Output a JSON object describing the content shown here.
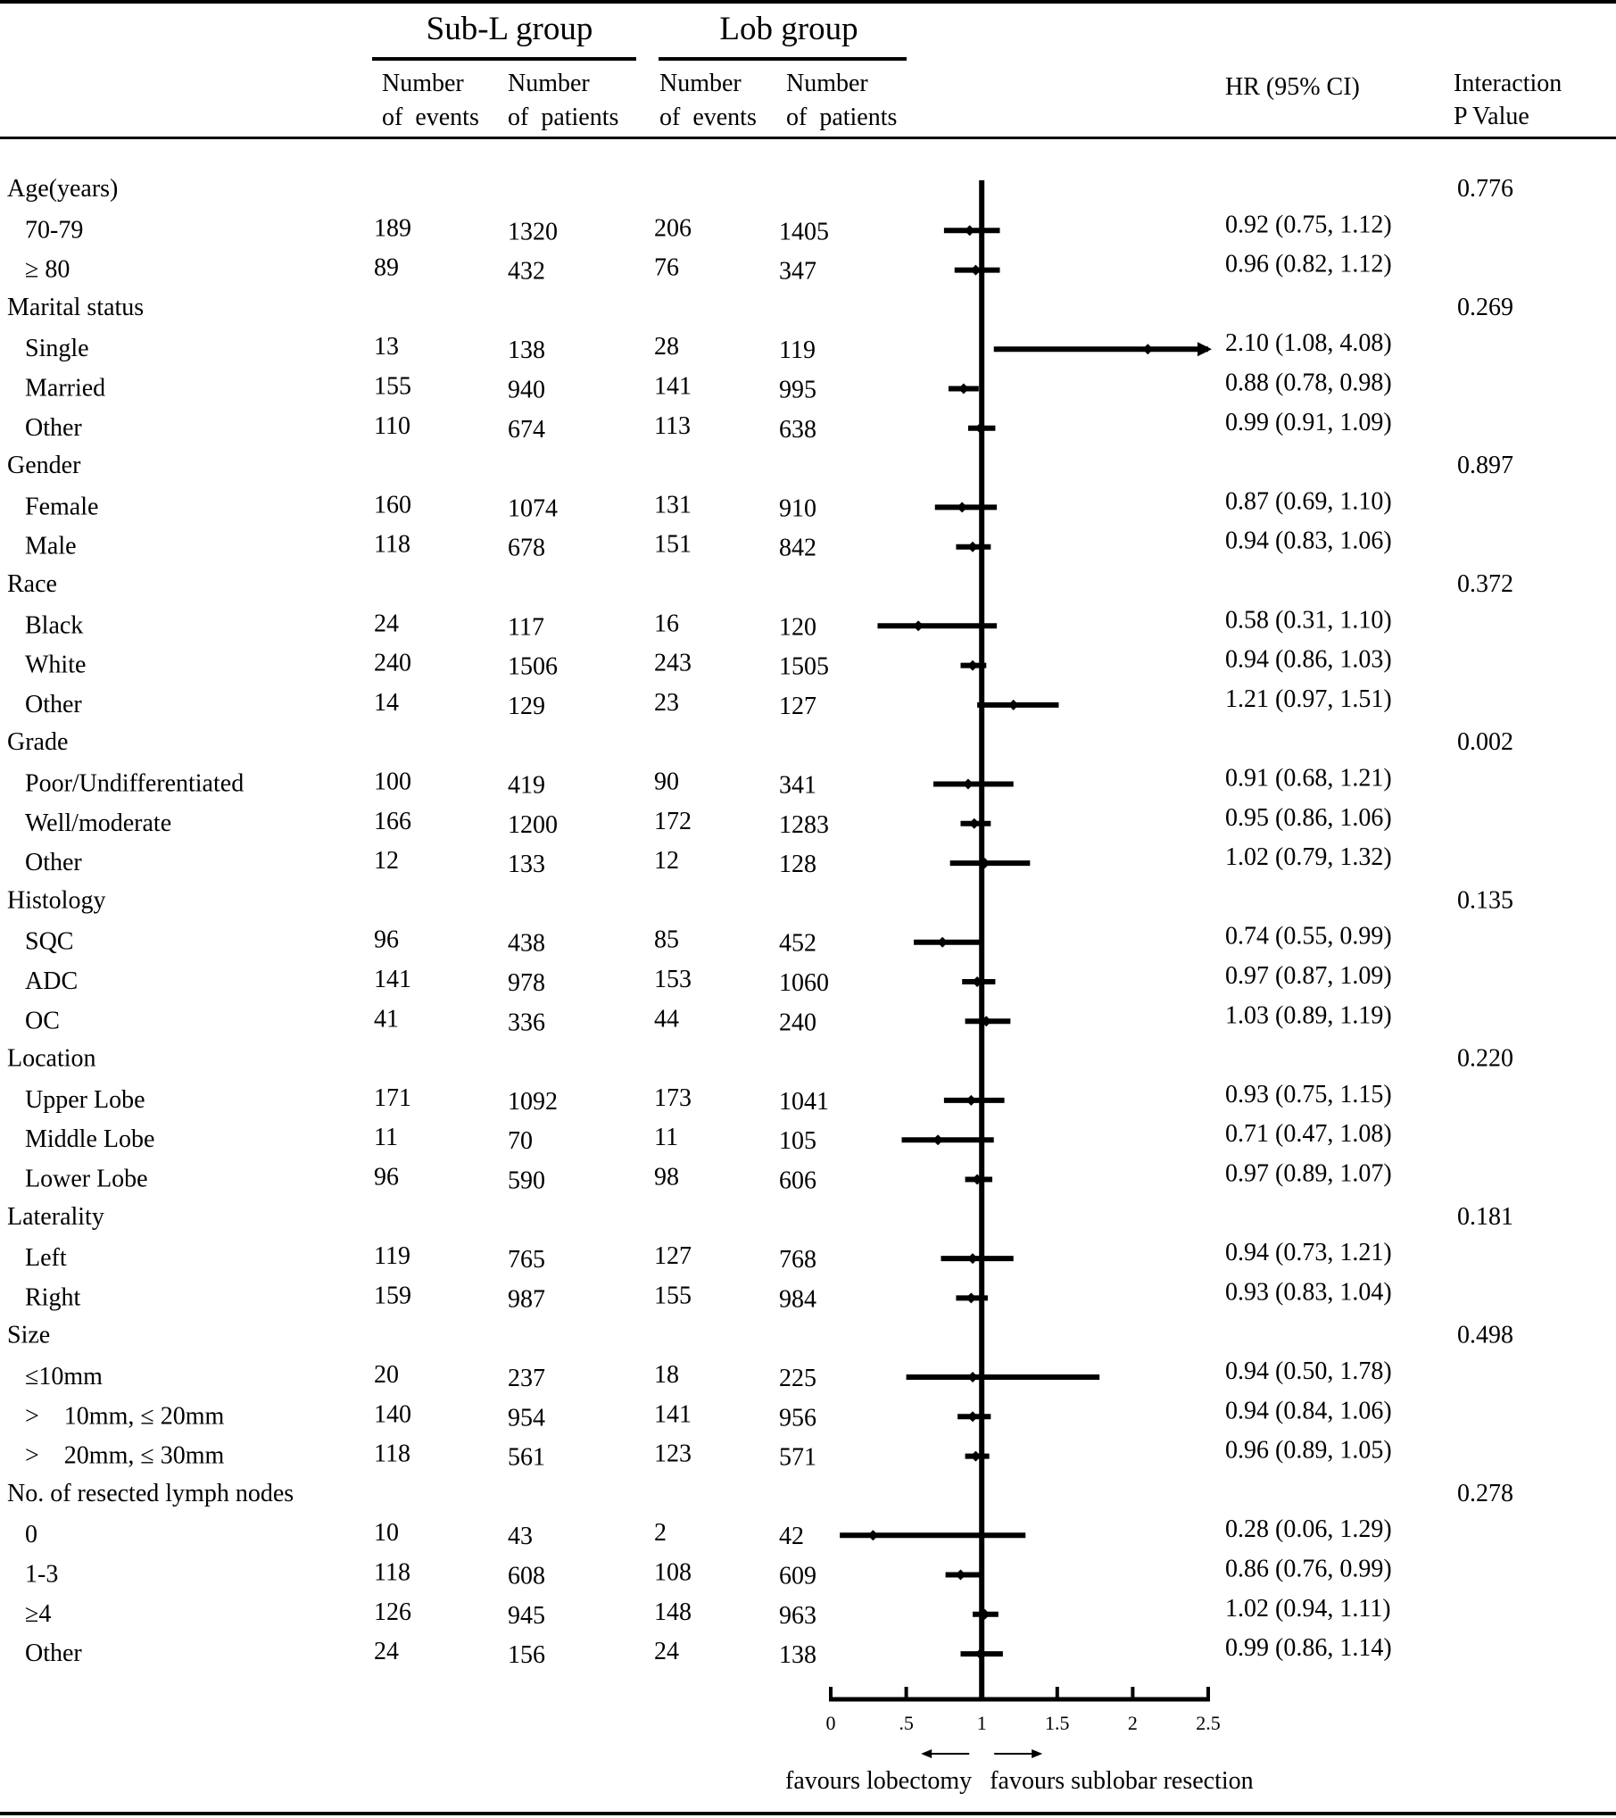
{
  "chart_data": {
    "type": "forest",
    "title": "",
    "headers": {
      "group1": "Sub-L group",
      "group2": "Lob group",
      "events_line1": "Number",
      "events_line2": "of  events",
      "patients_line1": "Number",
      "patients_line2": "of  patients",
      "hr": "HR (95% CI)",
      "pval_line1": "Interaction",
      "pval_line2": "P Value"
    },
    "axis": {
      "ticks": [
        0,
        0.5,
        1,
        1.5,
        2,
        2.5
      ],
      "tick_labels": [
        "0",
        ".5",
        "1",
        "1.5",
        "2",
        "2.5"
      ],
      "xlim": [
        0,
        2.5
      ],
      "reference": 1,
      "arrow_left_label": "favours lobectomy",
      "arrow_right_label": "favours sublobar resection"
    },
    "rows": [
      {
        "kind": "group",
        "label": "Age(years)",
        "pval": "0.776"
      },
      {
        "kind": "sub",
        "label": "70-79",
        "sub_events": "189",
        "sub_patients": "1320",
        "lob_events": "206",
        "lob_patients": "1405",
        "hr_text": "0.92 (0.75, 1.12)",
        "hr": 0.92,
        "lo": 0.75,
        "hi": 1.12
      },
      {
        "kind": "sub",
        "label": "≥ 80",
        "sub_events": "89",
        "sub_patients": "432",
        "lob_events": "76",
        "lob_patients": "347",
        "hr_text": "0.96 (0.82, 1.12)",
        "hr": 0.96,
        "lo": 0.82,
        "hi": 1.12
      },
      {
        "kind": "group",
        "label": "Marital status",
        "pval": "0.269"
      },
      {
        "kind": "sub",
        "label": "Single",
        "sub_events": "13",
        "sub_patients": "138",
        "lob_events": "28",
        "lob_patients": "119",
        "hr_text": "2.10 (1.08, 4.08)",
        "hr": 2.1,
        "lo": 1.08,
        "hi": 4.08
      },
      {
        "kind": "sub",
        "label": "Married",
        "sub_events": "155",
        "sub_patients": "940",
        "lob_events": "141",
        "lob_patients": "995",
        "hr_text": "0.88 (0.78, 0.98)",
        "hr": 0.88,
        "lo": 0.78,
        "hi": 0.98
      },
      {
        "kind": "sub",
        "label": "Other",
        "sub_events": "110",
        "sub_patients": "674",
        "lob_events": "113",
        "lob_patients": "638",
        "hr_text": "0.99 (0.91, 1.09)",
        "hr": 0.99,
        "lo": 0.91,
        "hi": 1.09
      },
      {
        "kind": "group",
        "label": "Gender",
        "pval": "0.897"
      },
      {
        "kind": "sub",
        "label": "Female",
        "sub_events": "160",
        "sub_patients": "1074",
        "lob_events": "131",
        "lob_patients": "910",
        "hr_text": "0.87 (0.69, 1.10)",
        "hr": 0.87,
        "lo": 0.69,
        "hi": 1.1
      },
      {
        "kind": "sub",
        "label": "Male",
        "sub_events": "118",
        "sub_patients": "678",
        "lob_events": "151",
        "lob_patients": "842",
        "hr_text": "0.94 (0.83, 1.06)",
        "hr": 0.94,
        "lo": 0.83,
        "hi": 1.06
      },
      {
        "kind": "group",
        "label": "Race",
        "pval": "0.372"
      },
      {
        "kind": "sub",
        "label": "Black",
        "sub_events": "24",
        "sub_patients": "117",
        "lob_events": "16",
        "lob_patients": "120",
        "hr_text": "0.58 (0.31, 1.10)",
        "hr": 0.58,
        "lo": 0.31,
        "hi": 1.1
      },
      {
        "kind": "sub",
        "label": "White",
        "sub_events": "240",
        "sub_patients": "1506",
        "lob_events": "243",
        "lob_patients": "1505",
        "hr_text": "0.94 (0.86, 1.03)",
        "hr": 0.94,
        "lo": 0.86,
        "hi": 1.03
      },
      {
        "kind": "sub",
        "label": "Other",
        "sub_events": "14",
        "sub_patients": "129",
        "lob_events": "23",
        "lob_patients": "127",
        "hr_text": "1.21 (0.97, 1.51)",
        "hr": 1.21,
        "lo": 0.97,
        "hi": 1.51
      },
      {
        "kind": "group",
        "label": "Grade",
        "pval": "0.002"
      },
      {
        "kind": "sub",
        "label": "Poor/Undifferentiated",
        "sub_events": "100",
        "sub_patients": "419",
        "lob_events": "90",
        "lob_patients": "341",
        "hr_text": "0.91 (0.68, 1.21)",
        "hr": 0.91,
        "lo": 0.68,
        "hi": 1.21
      },
      {
        "kind": "sub",
        "label": "Well/moderate",
        "sub_events": "166",
        "sub_patients": "1200",
        "lob_events": "172",
        "lob_patients": "1283",
        "hr_text": "0.95 (0.86, 1.06)",
        "hr": 0.95,
        "lo": 0.86,
        "hi": 1.06
      },
      {
        "kind": "sub",
        "label": "Other",
        "sub_events": "12",
        "sub_patients": "133",
        "lob_events": "12",
        "lob_patients": "128",
        "hr_text": "1.02 (0.79, 1.32)",
        "hr": 1.02,
        "lo": 0.79,
        "hi": 1.32
      },
      {
        "kind": "group",
        "label": "Histology",
        "pval": "0.135"
      },
      {
        "kind": "sub",
        "label": "SQC",
        "sub_events": "96",
        "sub_patients": "438",
        "lob_events": "85",
        "lob_patients": "452",
        "hr_text": "0.74 (0.55, 0.99)",
        "hr": 0.74,
        "lo": 0.55,
        "hi": 0.99
      },
      {
        "kind": "sub",
        "label": "ADC",
        "sub_events": "141",
        "sub_patients": "978",
        "lob_events": "153",
        "lob_patients": "1060",
        "hr_text": "0.97 (0.87, 1.09)",
        "hr": 0.97,
        "lo": 0.87,
        "hi": 1.09
      },
      {
        "kind": "sub",
        "label": "OC",
        "sub_events": "41",
        "sub_patients": "336",
        "lob_events": "44",
        "lob_patients": "240",
        "hr_text": "1.03 (0.89, 1.19)",
        "hr": 1.03,
        "lo": 0.89,
        "hi": 1.19
      },
      {
        "kind": "group",
        "label": "Location",
        "pval": "0.220"
      },
      {
        "kind": "sub",
        "label": "Upper Lobe",
        "sub_events": "171",
        "sub_patients": "1092",
        "lob_events": "173",
        "lob_patients": "1041",
        "hr_text": "0.93 (0.75, 1.15)",
        "hr": 0.93,
        "lo": 0.75,
        "hi": 1.15
      },
      {
        "kind": "sub",
        "label": "Middle Lobe",
        "sub_events": "11",
        "sub_patients": "70",
        "lob_events": "11",
        "lob_patients": "105",
        "hr_text": "0.71 (0.47, 1.08)",
        "hr": 0.71,
        "lo": 0.47,
        "hi": 1.08
      },
      {
        "kind": "sub",
        "label": "Lower Lobe",
        "sub_events": "96",
        "sub_patients": "590",
        "lob_events": "98",
        "lob_patients": "606",
        "hr_text": "0.97 (0.89, 1.07)",
        "hr": 0.97,
        "lo": 0.89,
        "hi": 1.07
      },
      {
        "kind": "group",
        "label": "Laterality",
        "pval": "0.181"
      },
      {
        "kind": "sub",
        "label": "Left",
        "sub_events": "119",
        "sub_patients": "765",
        "lob_events": "127",
        "lob_patients": "768",
        "hr_text": "0.94 (0.73, 1.21)",
        "hr": 0.94,
        "lo": 0.73,
        "hi": 1.21
      },
      {
        "kind": "sub",
        "label": "Right",
        "sub_events": "159",
        "sub_patients": "987",
        "lob_events": "155",
        "lob_patients": "984",
        "hr_text": "0.93 (0.83, 1.04)",
        "hr": 0.93,
        "lo": 0.83,
        "hi": 1.04
      },
      {
        "kind": "group",
        "label": "Size",
        "pval": "0.498"
      },
      {
        "kind": "sub",
        "label": "≤10mm",
        "sub_events": "20",
        "sub_patients": "237",
        "lob_events": "18",
        "lob_patients": "225",
        "hr_text": "0.94 (0.50, 1.78)",
        "hr": 0.94,
        "lo": 0.5,
        "hi": 1.78
      },
      {
        "kind": "sub",
        "label": ">    10mm, ≤ 20mm",
        "sub_events": "140",
        "sub_patients": "954",
        "lob_events": "141",
        "lob_patients": "956",
        "hr_text": "0.94 (0.84, 1.06)",
        "hr": 0.94,
        "lo": 0.84,
        "hi": 1.06
      },
      {
        "kind": "sub",
        "label": ">    20mm, ≤ 30mm",
        "sub_events": "118",
        "sub_patients": "561",
        "lob_events": "123",
        "lob_patients": "571",
        "hr_text": "0.96 (0.89, 1.05)",
        "hr": 0.96,
        "lo": 0.89,
        "hi": 1.05
      },
      {
        "kind": "group",
        "label": "No. of resected lymph nodes",
        "pval": "0.278"
      },
      {
        "kind": "sub",
        "label": "0",
        "sub_events": "10",
        "sub_patients": "43",
        "lob_events": "2",
        "lob_patients": "42",
        "hr_text": "0.28 (0.06, 1.29)",
        "hr": 0.28,
        "lo": 0.06,
        "hi": 1.29
      },
      {
        "kind": "sub",
        "label": "1-3",
        "sub_events": "118",
        "sub_patients": "608",
        "lob_events": "108",
        "lob_patients": "609",
        "hr_text": "0.86 (0.76, 0.99)",
        "hr": 0.86,
        "lo": 0.76,
        "hi": 0.99
      },
      {
        "kind": "sub",
        "label": "≥4",
        "sub_events": "126",
        "sub_patients": "945",
        "lob_events": "148",
        "lob_patients": "963",
        "hr_text": "1.02 (0.94, 1.11)",
        "hr": 1.02,
        "lo": 0.94,
        "hi": 1.11
      },
      {
        "kind": "sub",
        "label": "Other",
        "sub_events": "24",
        "sub_patients": "156",
        "lob_events": "24",
        "lob_patients": "138",
        "hr_text": "0.99 (0.86, 1.14)",
        "hr": 0.99,
        "lo": 0.86,
        "hi": 1.14
      }
    ]
  }
}
